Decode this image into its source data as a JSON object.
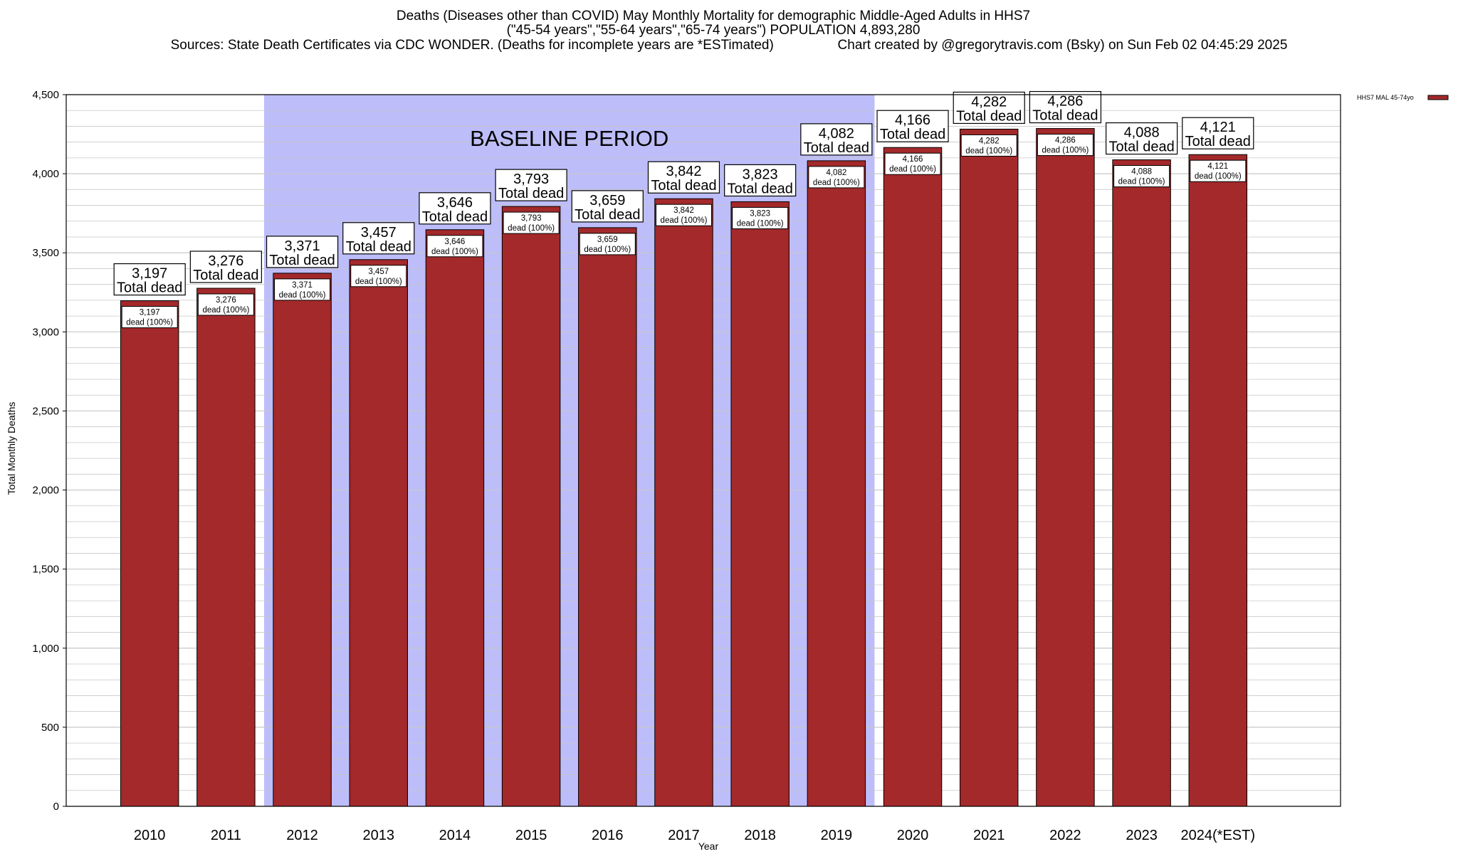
{
  "titles": {
    "line1": "Deaths (Diseases other than COVID) May Monthly Mortality for demographic Middle-Aged Adults in HHS7",
    "line2": "(\"45-54 years\",\"55-64 years\",\"65-74 years\") POPULATION 4,893,280",
    "line3_left": "Sources: State Death Certificates via CDC WONDER. (Deaths for incomplete years are *ESTimated)",
    "line3_right": "Chart created by @gregorytravis.com (Bsky) on Sun Feb 02 04:45:29 2025"
  },
  "chart_data": {
    "type": "bar",
    "xlabel": "Year",
    "ylabel": "Total Monthly Deaths",
    "ylim": [
      0,
      4500
    ],
    "ytick_step": 500,
    "ytick_labels": [
      "0",
      "500",
      "1,000",
      "1,500",
      "2,000",
      "2,500",
      "3,000",
      "3,500",
      "4,000",
      "4,500"
    ],
    "grid": true,
    "legend_position": "top-right",
    "baseline_period": {
      "label": "BASELINE PERIOD",
      "from": "2012",
      "to": "2019"
    },
    "categories": [
      "2010",
      "2011",
      "2012",
      "2013",
      "2014",
      "2015",
      "2016",
      "2017",
      "2018",
      "2019",
      "2020",
      "2021",
      "2022",
      "2023",
      "2024(*EST)"
    ],
    "series": [
      {
        "name": "HHS7 MAL 45-74yo",
        "color": "#a3292b",
        "values": [
          3197,
          3276,
          3371,
          3457,
          3646,
          3793,
          3659,
          3842,
          3823,
          4082,
          4166,
          4282,
          4286,
          4088,
          4121
        ]
      }
    ],
    "value_labels": [
      "3,197",
      "3,276",
      "3,371",
      "3,457",
      "3,646",
      "3,793",
      "3,659",
      "3,842",
      "3,823",
      "4,082",
      "4,166",
      "4,282",
      "4,286",
      "4,088",
      "4,121"
    ],
    "total_label_suffix": "Total dead",
    "inner_label_suffix": "dead (100%)"
  },
  "colors": {
    "bar": "#a3292b",
    "bar_top_line": "#6e1416",
    "baseline_shade": "#bdbdfa",
    "grid": "#c8c8c8"
  }
}
